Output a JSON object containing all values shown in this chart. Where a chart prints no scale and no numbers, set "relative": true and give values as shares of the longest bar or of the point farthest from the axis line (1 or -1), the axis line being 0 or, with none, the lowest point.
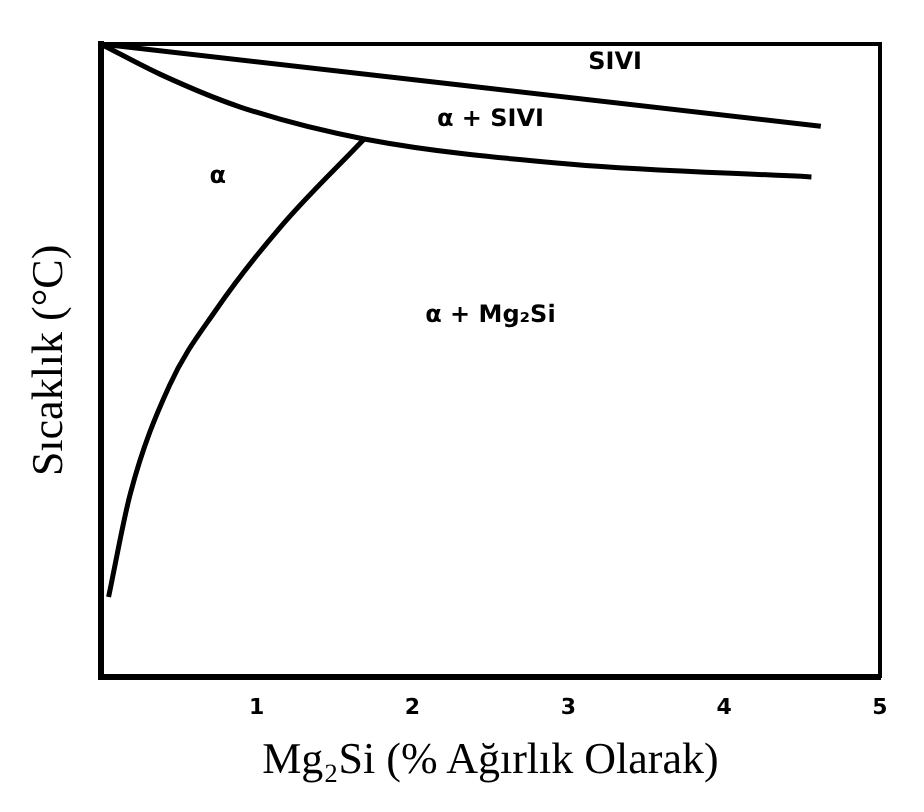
{
  "chart_data": {
    "type": "line",
    "relative": true,
    "xlabel": "Mg₂Si (% Ağırlık Olarak)",
    "ylabel": "Sıcaklık (°C)",
    "xlim": [
      0,
      5
    ],
    "xticks": [
      1,
      2,
      3,
      4,
      5
    ],
    "grid": false,
    "legend": false,
    "marker": "none",
    "line_style": "solid",
    "series": [
      {
        "color": "#000000",
        "x": [
          0,
          4.62
        ],
        "values": [
          1.0,
          0.87
        ]
      },
      {
        "color": "#000000",
        "x": [
          0,
          0.4,
          0.9,
          1.69,
          3.02,
          4.56
        ],
        "values": [
          1.0,
          0.95,
          0.9,
          0.85,
          0.81,
          0.79
        ]
      },
      {
        "color": "#000000",
        "x": [
          0.05,
          0.19,
          0.44,
          0.74,
          1.15,
          1.69
        ],
        "values": [
          0.126,
          0.29,
          0.46,
          0.58,
          0.71,
          0.85
        ]
      }
    ],
    "annotations": [
      "SIVI",
      "α + SIVI",
      "α",
      "α + Mg₂Si"
    ]
  }
}
